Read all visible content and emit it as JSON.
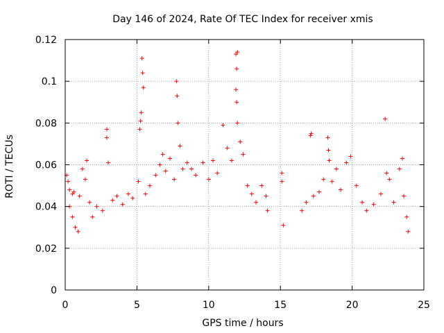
{
  "chart_data": {
    "type": "scatter",
    "title": "Day 146 of 2024, Rate Of TEC Index for receiver xmis",
    "xlabel": "GPS time / hours",
    "ylabel": "ROTI / TECUs",
    "xlim": [
      0,
      25
    ],
    "ylim": [
      0,
      0.12
    ],
    "xticks": [
      0,
      5,
      10,
      15,
      20,
      25
    ],
    "xtick_labels": [
      "0",
      "5",
      "10",
      "15",
      "20",
      "25"
    ],
    "yticks": [
      0,
      0.02,
      0.04,
      0.06,
      0.08,
      0.1,
      0.12
    ],
    "ytick_labels": [
      "0",
      "0.02",
      "0.04",
      "0.06",
      "0.08",
      "0.1",
      "0.12"
    ],
    "grid": true,
    "marker": "plus",
    "color": "#ff0000",
    "series": [
      {
        "name": "ROTI",
        "points": [
          [
            0.1,
            0.055
          ],
          [
            0.2,
            0.052
          ],
          [
            0.3,
            0.048
          ],
          [
            0.5,
            0.046
          ],
          [
            0.6,
            0.047
          ],
          [
            0.3,
            0.04
          ],
          [
            0.5,
            0.035
          ],
          [
            0.7,
            0.03
          ],
          [
            0.9,
            0.028
          ],
          [
            1.0,
            0.045
          ],
          [
            1.2,
            0.058
          ],
          [
            1.4,
            0.053
          ],
          [
            1.5,
            0.062
          ],
          [
            1.7,
            0.042
          ],
          [
            1.9,
            0.035
          ],
          [
            2.2,
            0.04
          ],
          [
            2.6,
            0.038
          ],
          [
            2.9,
            0.077
          ],
          [
            2.9,
            0.073
          ],
          [
            3.0,
            0.061
          ],
          [
            3.3,
            0.043
          ],
          [
            3.6,
            0.045
          ],
          [
            4.0,
            0.041
          ],
          [
            4.4,
            0.046
          ],
          [
            4.7,
            0.044
          ],
          [
            5.1,
            0.052
          ],
          [
            5.35,
            0.111
          ],
          [
            5.4,
            0.104
          ],
          [
            5.45,
            0.097
          ],
          [
            5.3,
            0.085
          ],
          [
            5.25,
            0.081
          ],
          [
            5.2,
            0.077
          ],
          [
            5.6,
            0.046
          ],
          [
            5.9,
            0.05
          ],
          [
            6.3,
            0.055
          ],
          [
            6.6,
            0.06
          ],
          [
            6.8,
            0.065
          ],
          [
            7.0,
            0.057
          ],
          [
            7.3,
            0.063
          ],
          [
            7.6,
            0.053
          ],
          [
            7.75,
            0.1
          ],
          [
            7.8,
            0.093
          ],
          [
            7.85,
            0.08
          ],
          [
            8.0,
            0.069
          ],
          [
            8.2,
            0.058
          ],
          [
            8.5,
            0.061
          ],
          [
            8.8,
            0.058
          ],
          [
            9.1,
            0.055
          ],
          [
            9.6,
            0.061
          ],
          [
            10.0,
            0.053
          ],
          [
            10.3,
            0.062
          ],
          [
            10.6,
            0.056
          ],
          [
            11.0,
            0.079
          ],
          [
            11.3,
            0.068
          ],
          [
            11.6,
            0.062
          ],
          [
            11.9,
            0.113
          ],
          [
            12.0,
            0.114
          ],
          [
            11.95,
            0.106
          ],
          [
            11.9,
            0.096
          ],
          [
            11.95,
            0.09
          ],
          [
            12.0,
            0.08
          ],
          [
            12.2,
            0.071
          ],
          [
            12.4,
            0.065
          ],
          [
            12.7,
            0.05
          ],
          [
            13.0,
            0.046
          ],
          [
            13.3,
            0.042
          ],
          [
            13.7,
            0.05
          ],
          [
            14.0,
            0.045
          ],
          [
            14.1,
            0.038
          ],
          [
            15.1,
            0.056
          ],
          [
            15.1,
            0.052
          ],
          [
            15.2,
            0.031
          ],
          [
            16.5,
            0.038
          ],
          [
            16.8,
            0.042
          ],
          [
            17.1,
            0.074
          ],
          [
            17.15,
            0.075
          ],
          [
            17.3,
            0.045
          ],
          [
            17.7,
            0.047
          ],
          [
            18.0,
            0.053
          ],
          [
            18.3,
            0.073
          ],
          [
            18.35,
            0.067
          ],
          [
            18.4,
            0.062
          ],
          [
            18.6,
            0.052
          ],
          [
            18.9,
            0.058
          ],
          [
            19.2,
            0.048
          ],
          [
            19.6,
            0.061
          ],
          [
            19.9,
            0.064
          ],
          [
            20.3,
            0.05
          ],
          [
            20.7,
            0.042
          ],
          [
            21.0,
            0.038
          ],
          [
            21.5,
            0.041
          ],
          [
            22.0,
            0.046
          ],
          [
            22.3,
            0.082
          ],
          [
            22.4,
            0.056
          ],
          [
            22.6,
            0.053
          ],
          [
            22.9,
            0.042
          ],
          [
            23.3,
            0.058
          ],
          [
            23.5,
            0.063
          ],
          [
            23.6,
            0.045
          ],
          [
            23.8,
            0.035
          ],
          [
            23.9,
            0.028
          ]
        ]
      }
    ]
  }
}
